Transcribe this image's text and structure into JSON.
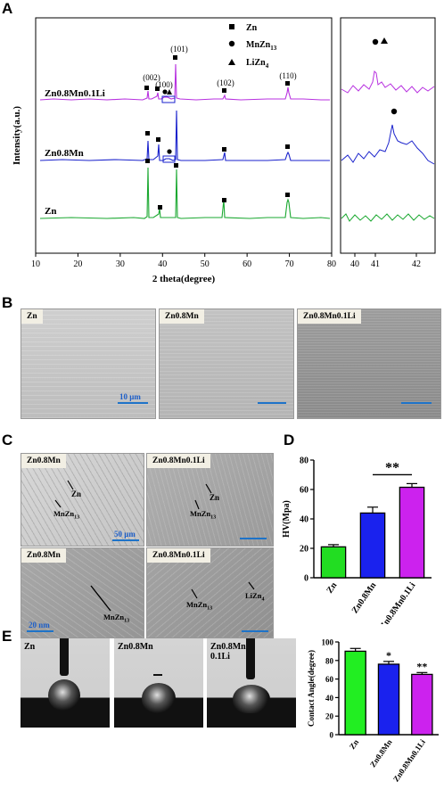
{
  "panels": {
    "A": "A",
    "B": "B",
    "C": "C",
    "D": "D",
    "E": "E"
  },
  "xrd": {
    "ylabel": "Intensity(a.u.)",
    "xlabel": "2 theta(degree)",
    "xticks": [
      "10",
      "20",
      "30",
      "40",
      "50",
      "60",
      "70",
      "80"
    ],
    "inset_xticks": [
      "40",
      "41",
      "42"
    ],
    "samples": [
      "Zn0.8Mn0.1Li",
      "Zn0.8Mn",
      "Zn"
    ],
    "peaks": [
      "(002)",
      "(100)",
      "(101)",
      "(102)",
      "(110)"
    ],
    "legend": {
      "zn": "Zn",
      "mnzn": "MnZn",
      "mnzn_sub": "13",
      "lizn": "LiZn",
      "lizn_sub": "4"
    }
  },
  "sem_b": {
    "labels": [
      "Zn",
      "Zn0.8Mn",
      "Zn0.8Mn0.1Li"
    ],
    "scale": "10 μm"
  },
  "sem_c": {
    "labels": [
      "Zn0.8Mn",
      "Zn0.8Mn0.1Li",
      "Zn0.8Mn",
      "Zn0.8Mn0.1Li"
    ],
    "scale_top": "50 μm",
    "scale_bottom": "20 nm",
    "arrow_zn": "Zn",
    "arrow_mnzn": "MnZn",
    "arrow_mnzn_sub": "13",
    "arrow_lizn": "LiZn",
    "arrow_lizn_sub": "4"
  },
  "chart_data": [
    {
      "type": "bar",
      "panel": "D",
      "categories": [
        "Zn",
        "Zn0.8Mn",
        "Zn0.8Mn0.1Li"
      ],
      "values": [
        21,
        44,
        61.5
      ],
      "errors": [
        1.5,
        4,
        2.5
      ],
      "colors": [
        "#22dd22",
        "#1a22ee",
        "#cc22ee"
      ],
      "ylabel": "HV(Mpa)",
      "ylim": [
        0,
        80
      ],
      "yticks": [
        "0",
        "20",
        "40",
        "60",
        "80"
      ],
      "significance": "**"
    },
    {
      "type": "bar",
      "panel": "E",
      "categories": [
        "Zn",
        "Zn0.8Mn",
        "Zn0.8Mn0.1Li"
      ],
      "values": [
        90,
        76,
        65
      ],
      "errors": [
        3,
        3,
        2
      ],
      "colors": [
        "#22ee22",
        "#1a22ee",
        "#cc22ee"
      ],
      "ylabel": "Contact Angle(degree)",
      "ylim": [
        0,
        100
      ],
      "yticks": [
        "0",
        "20",
        "40",
        "60",
        "80",
        "100"
      ],
      "significance": [
        "",
        "*",
        "**"
      ]
    }
  ],
  "contact": {
    "labels": [
      "Zn",
      "Zn0.8Mn",
      "Zn0.8Mn"
    ],
    "label3_line2": "0.1Li"
  }
}
